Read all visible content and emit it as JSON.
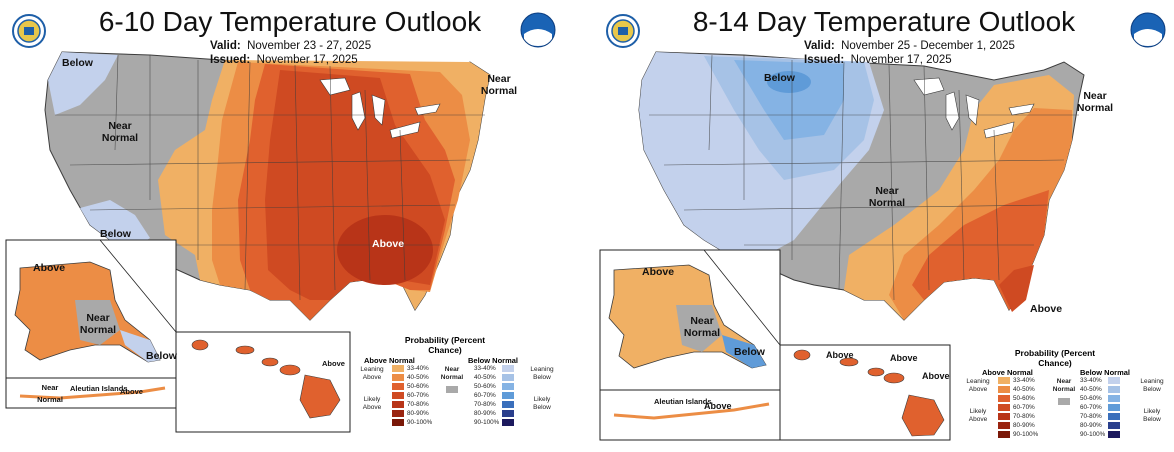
{
  "colors": {
    "near_normal": "#a9a9a9",
    "above": [
      "#f0b064",
      "#ec8d45",
      "#e0612e",
      "#cf4a22",
      "#b83418",
      "#9a2410",
      "#7a1808"
    ],
    "below": [
      "#c3d1ec",
      "#a6c2e6",
      "#85b3e4",
      "#5f9bd8",
      "#3a6fbb",
      "#2a3f8d",
      "#1c1a5e"
    ],
    "ocean": "#ffffff",
    "state_line": "#3c3c3c"
  },
  "left": {
    "title": "6-10 Day Temperature Outlook",
    "valid_label": "Valid:",
    "valid_value": "November 23 - 27, 2025",
    "issued_label": "Issued:",
    "issued_value": "November 17, 2025",
    "map_labels": {
      "below_nw": "Below",
      "near_normal_w": "Near Normal",
      "below_sw": "Below",
      "above_se": "Above",
      "near_normal_ne": "Near Normal",
      "ak_above": "Above",
      "ak_near_normal": "Near Normal",
      "ak_below": "Below",
      "aleutian_near_normal": "Near Normal",
      "aleutian_islands": "Aleutian Islands",
      "aleutian_above": "Above",
      "hawaii_above": "Above"
    },
    "legend": {
      "title": "Probability (Percent Chance)",
      "above_header": "Above Normal",
      "below_header": "Below Normal",
      "leaning_above": "Leaning Above",
      "likely_above": "Likely Above",
      "leaning_below": "Leaning Below",
      "likely_below": "Likely Below",
      "near_normal": "Near Normal",
      "ranges": [
        "33-40%",
        "40-50%",
        "50-60%",
        "60-70%",
        "70-80%",
        "80-90%",
        "90-100%"
      ]
    }
  },
  "right": {
    "title": "8-14 Day Temperature Outlook",
    "valid_label": "Valid:",
    "valid_value": "November 25 - December 1, 2025",
    "issued_label": "Issued:",
    "issued_value": "November 17, 2025",
    "map_labels": {
      "below_n": "Below",
      "near_normal_ne": "Near Normal",
      "near_normal_c": "Near Normal",
      "above_fl": "Above",
      "ak_above": "Above",
      "ak_near_normal": "Near Normal",
      "ak_below": "Below",
      "aleutian_islands": "Aleutian Islands",
      "aleutian_above": "Above",
      "hawaii_above_1": "Above",
      "hawaii_above_2": "Above",
      "hawaii_above_3": "Above"
    },
    "legend": {
      "title": "Probability (Percent Chance)",
      "above_header": "Above Normal",
      "below_header": "Below Normal",
      "leaning_above": "Leaning Above",
      "likely_above": "Likely Above",
      "leaning_below": "Leaning Below",
      "likely_below": "Likely Below",
      "near_normal": "Near Normal",
      "ranges": [
        "33-40%",
        "40-50%",
        "50-60%",
        "60-70%",
        "70-80%",
        "80-90%",
        "90-100%"
      ]
    }
  }
}
